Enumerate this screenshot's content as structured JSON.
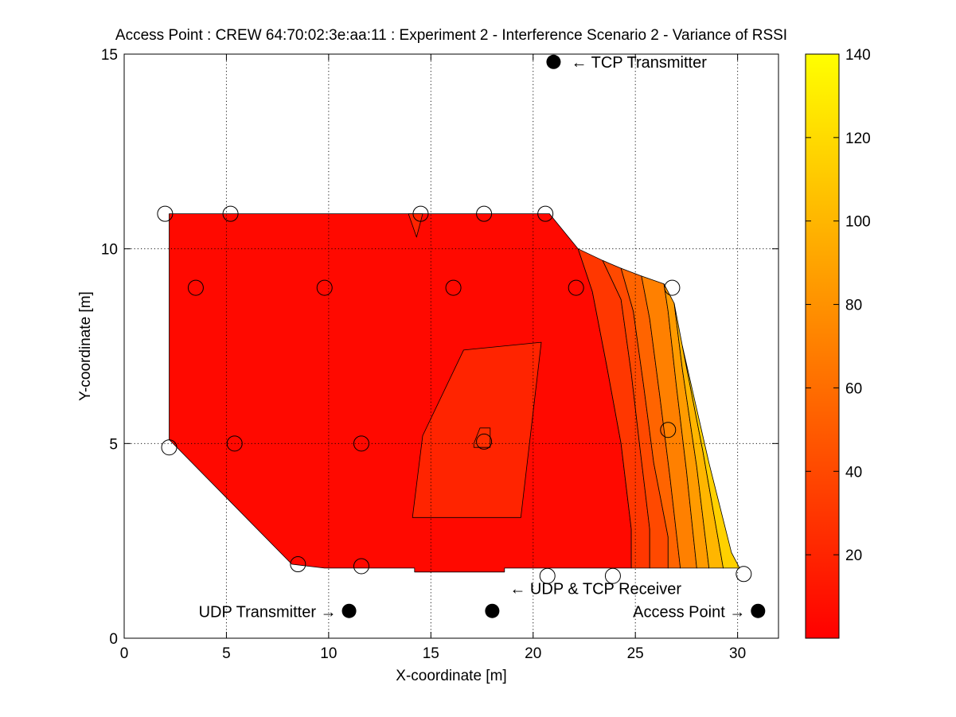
{
  "chart_data": {
    "type": "heatmap",
    "title": "Access Point : CREW 64:70:02:3e:aa:11 : Experiment 2 - Interference Scenario 2 - Variance of RSSI",
    "xlabel": "X-coordinate [m]",
    "ylabel": "Y-coordinate [m]",
    "xlim": [
      0,
      32
    ],
    "ylim": [
      0,
      15
    ],
    "xticks": [
      0,
      5,
      10,
      15,
      20,
      25,
      30
    ],
    "yticks": [
      0,
      5,
      10,
      15
    ],
    "grid": true,
    "colormap": "autumn",
    "colorbar": {
      "range": [
        0,
        140
      ],
      "ticks": [
        20,
        40,
        60,
        80,
        100,
        120,
        140
      ],
      "colors": [
        "#ff0000",
        "#ffff00"
      ]
    },
    "measurement_points": [
      {
        "x": 2,
        "y": 10.9
      },
      {
        "x": 5.2,
        "y": 10.9
      },
      {
        "x": 14.5,
        "y": 10.9
      },
      {
        "x": 17.6,
        "y": 10.9
      },
      {
        "x": 20.6,
        "y": 10.9
      },
      {
        "x": 3.5,
        "y": 9
      },
      {
        "x": 9.8,
        "y": 9
      },
      {
        "x": 16.1,
        "y": 9
      },
      {
        "x": 22.1,
        "y": 9
      },
      {
        "x": 26.8,
        "y": 9
      },
      {
        "x": 2.2,
        "y": 4.9
      },
      {
        "x": 5.4,
        "y": 5
      },
      {
        "x": 11.6,
        "y": 5
      },
      {
        "x": 17.6,
        "y": 5.05
      },
      {
        "x": 26.6,
        "y": 5.35
      },
      {
        "x": 8.5,
        "y": 1.9
      },
      {
        "x": 11.6,
        "y": 1.85
      },
      {
        "x": 20.7,
        "y": 1.6
      },
      {
        "x": 23.9,
        "y": 1.6
      },
      {
        "x": 30.3,
        "y": 1.65
      }
    ],
    "devices": [
      {
        "name": "TCP Transmitter",
        "label": "← TCP Transmitter",
        "x": 21,
        "y": 14.8
      },
      {
        "name": "UDP Transmitter",
        "label": "UDP Transmitter →",
        "x": 11,
        "y": 0.7
      },
      {
        "name": "UDP & TCP Receiver",
        "label": "← UDP & TCP Receiver",
        "x": 18,
        "y": 0.7
      },
      {
        "name": "Access Point",
        "label": "Access Point →",
        "x": 31,
        "y": 0.7
      }
    ],
    "contour_regions": [
      {
        "value": 5,
        "polygon": [
          [
            2.2,
            10.9
          ],
          [
            20.8,
            10.9
          ],
          [
            22.2,
            10
          ],
          [
            22.9,
            8.9
          ],
          [
            23.6,
            7
          ],
          [
            24.3,
            5
          ],
          [
            24.8,
            2.8
          ],
          [
            24.8,
            1.8
          ],
          [
            18.6,
            1.8
          ],
          [
            18.6,
            1.7
          ],
          [
            14.2,
            1.7
          ],
          [
            14.2,
            1.8
          ],
          [
            9.8,
            1.8
          ],
          [
            8.2,
            1.9
          ],
          [
            5.2,
            3.5
          ],
          [
            2.2,
            5.1
          ],
          [
            2.2,
            7.8
          ]
        ]
      },
      {
        "value": 20,
        "polygon": [
          [
            14.1,
            3.1
          ],
          [
            19.4,
            3.1
          ],
          [
            20.4,
            7.6
          ],
          [
            16.6,
            7.4
          ],
          [
            14.6,
            5.2
          ]
        ]
      },
      {
        "value": 20,
        "polygon": [
          [
            13.9,
            10.9
          ],
          [
            14.6,
            10.9
          ],
          [
            14.3,
            10.3
          ]
        ]
      },
      {
        "value": 25,
        "polygon": [
          [
            17.1,
            4.9
          ],
          [
            17.9,
            4.9
          ],
          [
            17.9,
            5.4
          ],
          [
            17.4,
            5.4
          ],
          [
            17.1,
            5
          ]
        ]
      },
      {
        "value": 30,
        "polygon": [
          [
            22.2,
            10
          ],
          [
            23.4,
            9.7
          ],
          [
            24.3,
            8.7
          ],
          [
            24.8,
            6.8
          ],
          [
            25.2,
            5
          ],
          [
            25.7,
            2.8
          ],
          [
            25.7,
            1.8
          ],
          [
            24.8,
            1.8
          ],
          [
            24.8,
            2.8
          ],
          [
            24.3,
            5
          ],
          [
            23.6,
            7
          ],
          [
            22.9,
            8.9
          ]
        ]
      },
      {
        "value": 40,
        "polygon": [
          [
            23.4,
            9.7
          ],
          [
            24.3,
            9.5
          ],
          [
            24.9,
            8.4
          ],
          [
            25.4,
            6.5
          ],
          [
            25.9,
            4.5
          ],
          [
            26.6,
            2.6
          ],
          [
            26.6,
            1.8
          ],
          [
            25.7,
            1.8
          ],
          [
            25.7,
            2.8
          ],
          [
            25.2,
            5
          ],
          [
            24.8,
            6.8
          ],
          [
            24.3,
            8.7
          ]
        ]
      },
      {
        "value": 55,
        "polygon": [
          [
            24.3,
            9.5
          ],
          [
            25.3,
            9.3
          ],
          [
            25.7,
            8.2
          ],
          [
            26.2,
            6.2
          ],
          [
            26.7,
            4.1
          ],
          [
            27.2,
            1.8
          ],
          [
            26.6,
            1.8
          ],
          [
            26.6,
            2.6
          ],
          [
            25.9,
            4.5
          ],
          [
            25.4,
            6.5
          ],
          [
            24.9,
            8.4
          ]
        ]
      },
      {
        "value": 70,
        "polygon": [
          [
            25.3,
            9.3
          ],
          [
            26.4,
            9.1
          ],
          [
            26.6,
            8.4
          ],
          [
            27,
            6.5
          ],
          [
            27.5,
            4.3
          ],
          [
            28,
            1.8
          ],
          [
            27.2,
            1.8
          ],
          [
            26.7,
            4.1
          ],
          [
            26.2,
            6.2
          ],
          [
            25.7,
            8.2
          ]
        ]
      },
      {
        "value": 85,
        "polygon": [
          [
            26.4,
            9.1
          ],
          [
            26.9,
            8.6
          ],
          [
            27.3,
            6.9
          ],
          [
            28,
            4.4
          ],
          [
            28.6,
            1.8
          ],
          [
            28,
            1.8
          ],
          [
            27.5,
            4.3
          ],
          [
            27,
            6.5
          ],
          [
            26.6,
            8.4
          ]
        ]
      },
      {
        "value": 100,
        "polygon": [
          [
            26.9,
            8.6
          ],
          [
            27.3,
            7.5
          ],
          [
            28.3,
            4.8
          ],
          [
            29.3,
            1.8
          ],
          [
            28.6,
            1.8
          ],
          [
            28,
            4.4
          ],
          [
            27.3,
            6.9
          ]
        ]
      },
      {
        "value": 115,
        "polygon": [
          [
            27.3,
            7.5
          ],
          [
            28.6,
            4.5
          ],
          [
            29.7,
            2.2
          ],
          [
            30.1,
            1.8
          ],
          [
            29.3,
            1.8
          ],
          [
            28.3,
            4.8
          ]
        ]
      }
    ]
  }
}
